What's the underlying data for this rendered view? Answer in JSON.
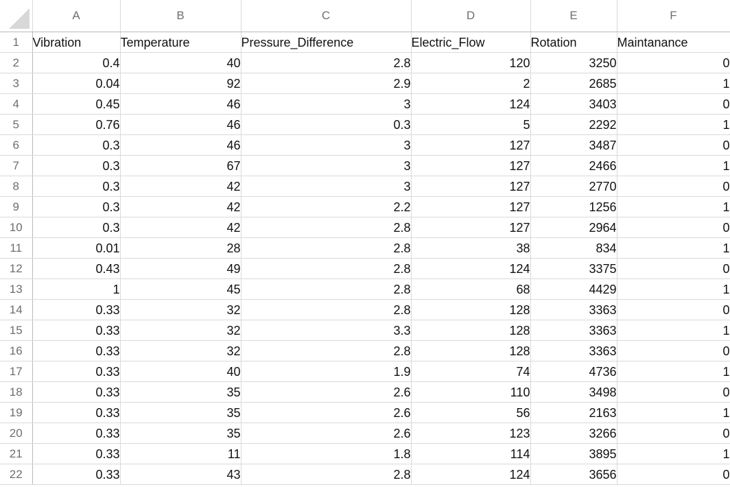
{
  "columns": [
    "A",
    "B",
    "C",
    "D",
    "E",
    "F"
  ],
  "header_row": {
    "row_number": "1",
    "cells": [
      "Vibration",
      "Temperature",
      "Pressure_Difference",
      "Electric_Flow",
      "Rotation",
      "Maintanance"
    ]
  },
  "rows": [
    {
      "row_number": "2",
      "cells": [
        "0.4",
        "40",
        "2.8",
        "120",
        "3250",
        "0"
      ]
    },
    {
      "row_number": "3",
      "cells": [
        "0.04",
        "92",
        "2.9",
        "2",
        "2685",
        "1"
      ]
    },
    {
      "row_number": "4",
      "cells": [
        "0.45",
        "46",
        "3",
        "124",
        "3403",
        "0"
      ]
    },
    {
      "row_number": "5",
      "cells": [
        "0.76",
        "46",
        "0.3",
        "5",
        "2292",
        "1"
      ]
    },
    {
      "row_number": "6",
      "cells": [
        "0.3",
        "46",
        "3",
        "127",
        "3487",
        "0"
      ]
    },
    {
      "row_number": "7",
      "cells": [
        "0.3",
        "67",
        "3",
        "127",
        "2466",
        "1"
      ]
    },
    {
      "row_number": "8",
      "cells": [
        "0.3",
        "42",
        "3",
        "127",
        "2770",
        "0"
      ]
    },
    {
      "row_number": "9",
      "cells": [
        "0.3",
        "42",
        "2.2",
        "127",
        "1256",
        "1"
      ]
    },
    {
      "row_number": "10",
      "cells": [
        "0.3",
        "42",
        "2.8",
        "127",
        "2964",
        "0"
      ]
    },
    {
      "row_number": "11",
      "cells": [
        "0.01",
        "28",
        "2.8",
        "38",
        "834",
        "1"
      ]
    },
    {
      "row_number": "12",
      "cells": [
        "0.43",
        "49",
        "2.8",
        "124",
        "3375",
        "0"
      ]
    },
    {
      "row_number": "13",
      "cells": [
        "1",
        "45",
        "2.8",
        "68",
        "4429",
        "1"
      ]
    },
    {
      "row_number": "14",
      "cells": [
        "0.33",
        "32",
        "2.8",
        "128",
        "3363",
        "0"
      ]
    },
    {
      "row_number": "15",
      "cells": [
        "0.33",
        "32",
        "3.3",
        "128",
        "3363",
        "1"
      ]
    },
    {
      "row_number": "16",
      "cells": [
        "0.33",
        "32",
        "2.8",
        "128",
        "3363",
        "0"
      ]
    },
    {
      "row_number": "17",
      "cells": [
        "0.33",
        "40",
        "1.9",
        "74",
        "4736",
        "1"
      ]
    },
    {
      "row_number": "18",
      "cells": [
        "0.33",
        "35",
        "2.6",
        "110",
        "3498",
        "0"
      ]
    },
    {
      "row_number": "19",
      "cells": [
        "0.33",
        "35",
        "2.6",
        "56",
        "2163",
        "1"
      ]
    },
    {
      "row_number": "20",
      "cells": [
        "0.33",
        "35",
        "2.6",
        "123",
        "3266",
        "0"
      ]
    },
    {
      "row_number": "21",
      "cells": [
        "0.33",
        "11",
        "1.8",
        "114",
        "3895",
        "1"
      ]
    },
    {
      "row_number": "22",
      "cells": [
        "0.33",
        "43",
        "2.8",
        "124",
        "3656",
        "0"
      ]
    }
  ]
}
